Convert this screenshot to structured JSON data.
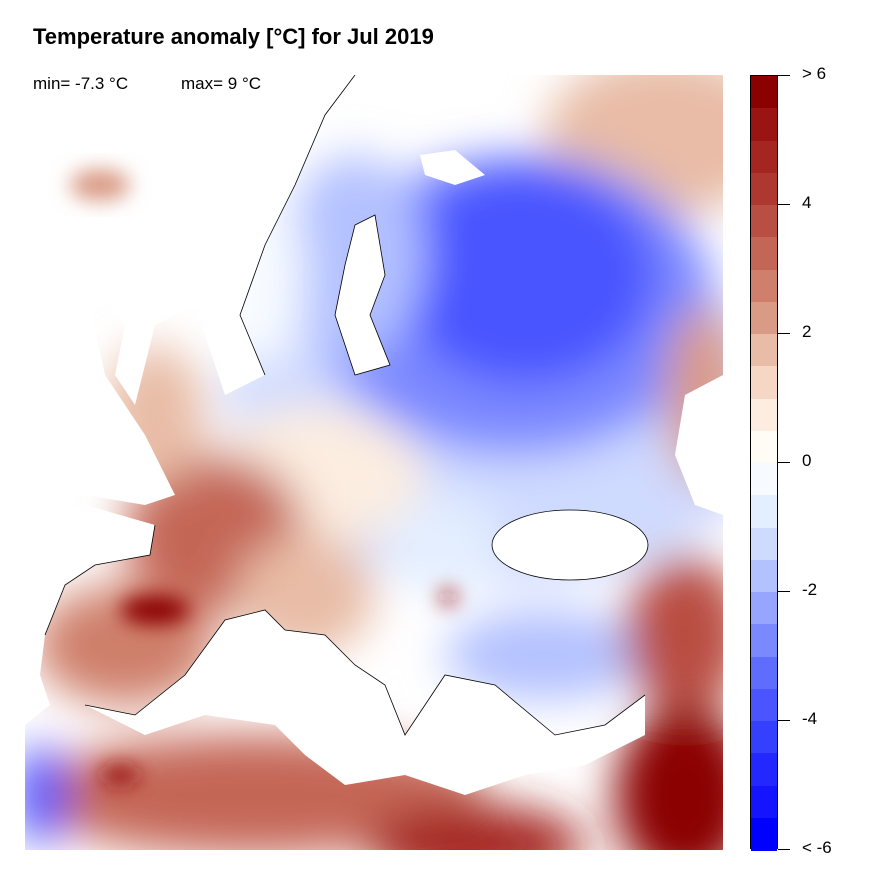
{
  "title": "Temperature anomaly [°C] for Jul 2019",
  "stats": {
    "min_label": "min= -7.3 °C",
    "max_label": "max= 9 °C"
  },
  "colorbar": {
    "range": [
      -6,
      6
    ],
    "step": 0.5,
    "colors_top_to_bottom": [
      "#8b0000",
      "#9a1414",
      "#a52520",
      "#ae3830",
      "#b94e42",
      "#c46656",
      "#cf7f6b",
      "#da9b86",
      "#e8bca6",
      "#f6d7c5",
      "#fcede0",
      "#fffbf5",
      "#f7fbff",
      "#e3eeff",
      "#cfdaff",
      "#b3c1ff",
      "#97a5ff",
      "#7b89ff",
      "#5f6dff",
      "#4a55ff",
      "#3540ff",
      "#2228ff",
      "#1414ff",
      "#0000ff"
    ],
    "ticks": [
      {
        "value": 6,
        "label": "> 6"
      },
      {
        "value": 4,
        "label": "4"
      },
      {
        "value": 2,
        "label": "2"
      },
      {
        "value": 0,
        "label": "0"
      },
      {
        "value": -2,
        "label": "-2"
      },
      {
        "value": -4,
        "label": "-4"
      },
      {
        "value": -6,
        "label": "< -6"
      }
    ]
  }
}
